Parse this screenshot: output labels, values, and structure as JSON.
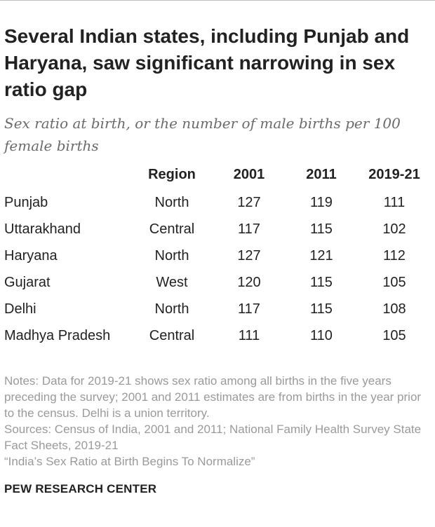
{
  "title": "Several Indian states, including Punjab and Haryana, saw significant narrowing in sex ratio gap",
  "subtitle": "Sex ratio at birth, or the number of male births per 100 female births",
  "chart_data": {
    "type": "table",
    "columns": [
      "",
      "Region",
      "2001",
      "2011",
      "2019-21"
    ],
    "rows": [
      {
        "state": "Punjab",
        "region": "North",
        "v2001": "127",
        "v2011": "119",
        "v2019": "111"
      },
      {
        "state": "Uttarakhand",
        "region": "Central",
        "v2001": "117",
        "v2011": "115",
        "v2019": "102"
      },
      {
        "state": "Haryana",
        "region": "North",
        "v2001": "127",
        "v2011": "121",
        "v2019": "112"
      },
      {
        "state": "Gujarat",
        "region": "West",
        "v2001": "120",
        "v2011": "115",
        "v2019": "105"
      },
      {
        "state": "Delhi",
        "region": "North",
        "v2001": "117",
        "v2011": "115",
        "v2019": "108"
      },
      {
        "state": "Madhya Pradesh",
        "region": "Central",
        "v2001": "111",
        "v2011": "110",
        "v2019": "105"
      }
    ]
  },
  "notes": {
    "line1": "Notes: Data for 2019-21 shows sex ratio among all births in the five years preceding the survey; 2001 and 2011 estimates are from births in the year prior to the census. Delhi is a union territory.",
    "line2": "Sources: Census of India, 2001 and 2011; National Family Health Survey State Fact Sheets, 2019-21",
    "line3": "“India’s Sex Ratio at Birth Begins To Normalize”"
  },
  "brand": "PEW RESEARCH CENTER"
}
